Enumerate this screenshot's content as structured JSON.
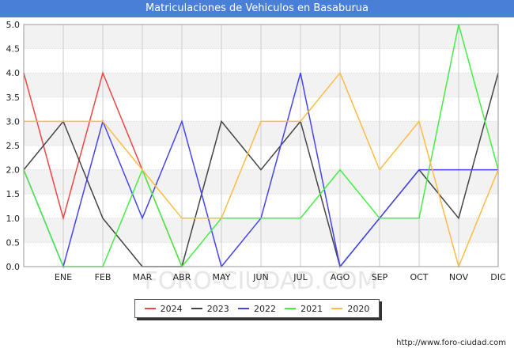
{
  "chart_data": {
    "type": "line",
    "title": "Matriculaciones de Vehiculos en Basaburua",
    "categories": [
      "",
      "ENE",
      "FEB",
      "MAR",
      "ABR",
      "MAY",
      "JUN",
      "JUL",
      "AGO",
      "SEP",
      "OCT",
      "NOV",
      "DIC"
    ],
    "yticks": [
      "0.0",
      "0.5",
      "1.0",
      "1.5",
      "2.0",
      "2.5",
      "3.0",
      "3.5",
      "4.0",
      "4.5",
      "5.0"
    ],
    "ylim": [
      0,
      5
    ],
    "grid": true,
    "series": [
      {
        "name": "2024",
        "color": "#ee4444",
        "values": [
          4,
          1,
          4,
          2,
          0,
          null,
          null,
          null,
          null,
          null,
          null,
          null,
          null
        ]
      },
      {
        "name": "2023",
        "color": "#444444",
        "values": [
          2,
          3,
          1,
          0,
          0,
          3,
          2,
          3,
          0,
          1,
          2,
          1,
          4
        ]
      },
      {
        "name": "2022",
        "color": "#4444ee",
        "values": [
          2,
          0,
          3,
          1,
          3,
          0,
          1,
          4,
          0,
          1,
          2,
          2,
          2
        ]
      },
      {
        "name": "2021",
        "color": "#44ee44",
        "values": [
          2,
          0,
          0,
          2,
          0,
          1,
          1,
          1,
          2,
          1,
          1,
          5,
          2
        ]
      },
      {
        "name": "2020",
        "color": "#ffbb44",
        "values": [
          3,
          3,
          3,
          2,
          1,
          1,
          3,
          3,
          4,
          2,
          3,
          0,
          2
        ]
      }
    ]
  },
  "footer": {
    "url": "http://www.foro-ciudad.com"
  },
  "watermark": "FORO-CIUDAD.COM"
}
